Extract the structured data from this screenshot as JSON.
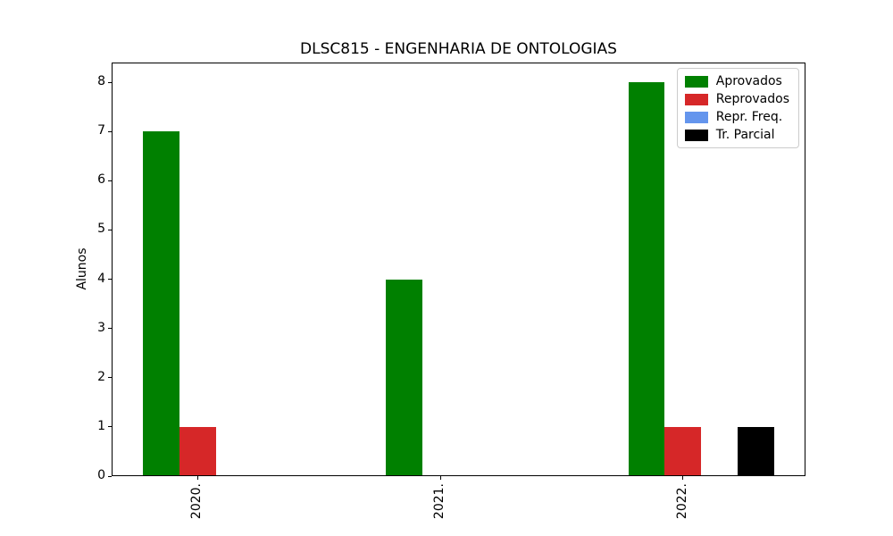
{
  "chart_data": {
    "type": "bar",
    "title": "DLSC815 - ENGENHARIA DE ONTOLOGIAS",
    "xlabel": "",
    "ylabel": "Alunos",
    "categories": [
      "2020.",
      "2021.",
      "2022."
    ],
    "series": [
      {
        "name": "Aprovados",
        "color": "#008000",
        "values": [
          7,
          4,
          8
        ]
      },
      {
        "name": "Reprovados",
        "color": "#d62728",
        "values": [
          1,
          0,
          1
        ]
      },
      {
        "name": "Repr. Freq.",
        "color": "#6495ed",
        "values": [
          0,
          0,
          0
        ]
      },
      {
        "name": "Tr. Parcial",
        "color": "#000000",
        "values": [
          0,
          0,
          1
        ]
      }
    ],
    "yticks": [
      0,
      1,
      2,
      3,
      4,
      5,
      6,
      7,
      8
    ],
    "ylim": [
      0,
      8.4
    ],
    "xlim": [
      -0.355,
      2.505
    ],
    "bar_width": 0.15,
    "bar_offsets": [
      -1,
      0,
      1,
      2
    ],
    "x_tick_rotation": 90,
    "legend_position": "upper right",
    "grid": false,
    "background": "#ffffff"
  }
}
